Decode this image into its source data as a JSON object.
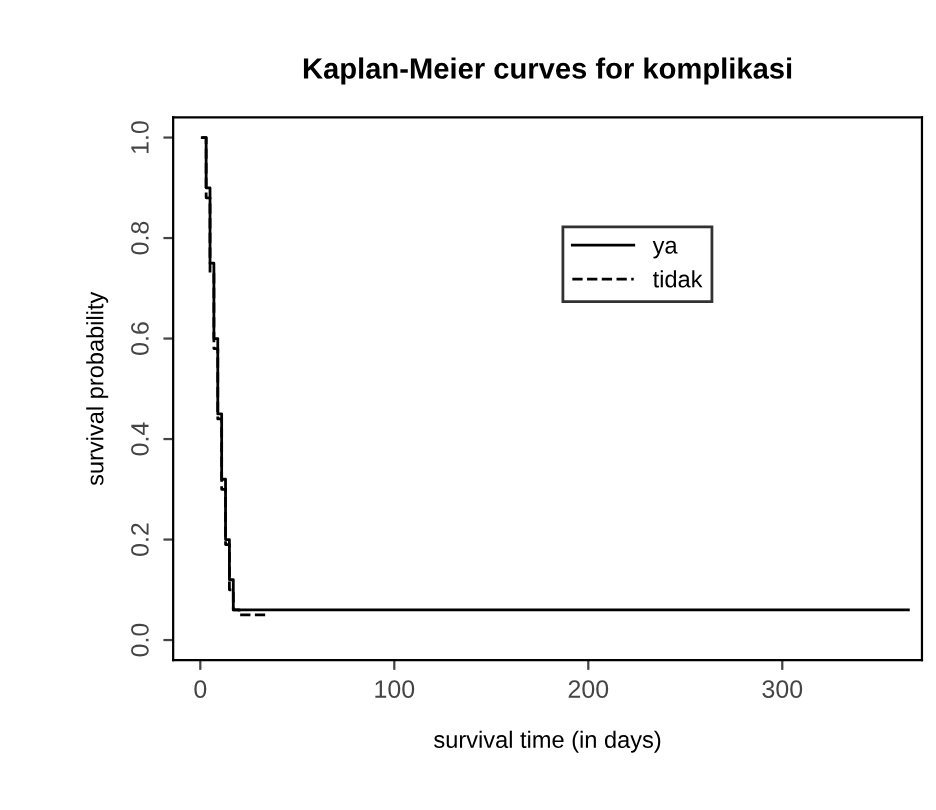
{
  "chart_data": {
    "type": "step",
    "title": "Kaplan-Meier curves for komplikasi",
    "xlabel": "survival time (in days)",
    "ylabel": "survival probability",
    "xlim": [
      -14,
      372
    ],
    "xticks": [
      0,
      100,
      200,
      300
    ],
    "ylim": [
      -0.04,
      1.04
    ],
    "yticks": [
      {
        "value": 0,
        "label": "0.0"
      },
      {
        "value": 0.2,
        "label": "0.2"
      },
      {
        "value": 0.4,
        "label": "0.4"
      },
      {
        "value": 0.6,
        "label": "0.6"
      },
      {
        "value": 0.8,
        "label": "0.8"
      },
      {
        "value": 1,
        "label": "1.0"
      }
    ],
    "grid": false,
    "legend": "top",
    "marker": "none",
    "series": [
      {
        "name": "ya",
        "color": "#000000",
        "line_style": "solid",
        "x": [
          1,
          3,
          5,
          7,
          9,
          11,
          13,
          15,
          17,
          365
        ],
        "values": [
          1,
          0.9,
          0.75,
          0.6,
          0.45,
          0.32,
          0.2,
          0.12,
          0.06,
          0.06
        ]
      },
      {
        "name": "tidak",
        "color": "#000000",
        "line_style": "dashed",
        "x": [
          1,
          3,
          5,
          7,
          9,
          11,
          13,
          15,
          17,
          20,
          35
        ],
        "values": [
          1,
          0.88,
          0.73,
          0.58,
          0.44,
          0.3,
          0.19,
          0.1,
          0.06,
          0.05,
          0.05
        ]
      }
    ]
  }
}
